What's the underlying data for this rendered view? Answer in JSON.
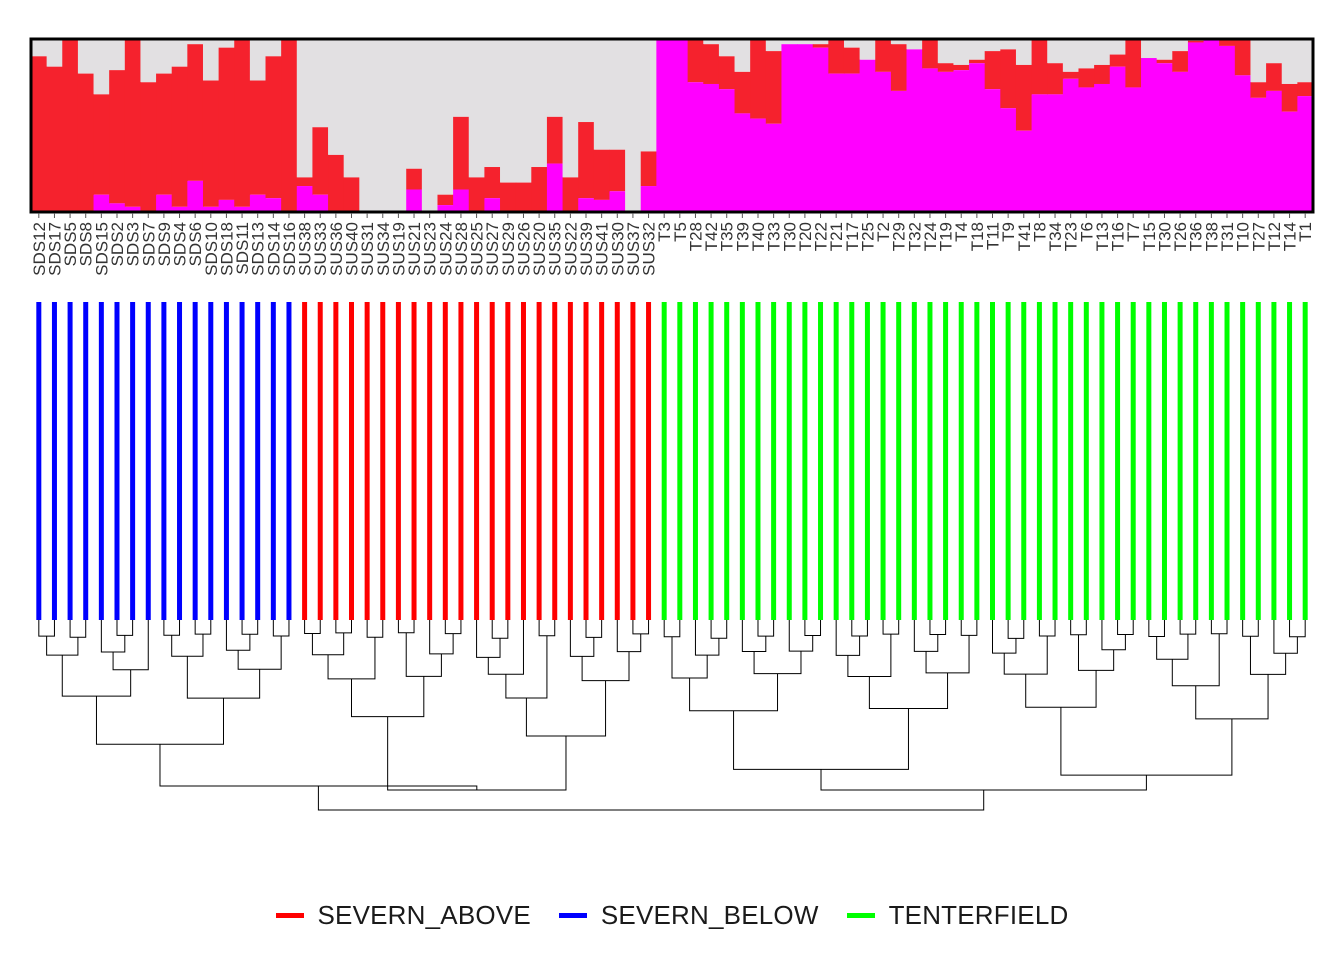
{
  "chart_data": {
    "type": "bar",
    "subtype": "stacked admixture barplot with sample grouping strips and dendrogram",
    "ylim": [
      0,
      1
    ],
    "components": [
      {
        "name": "cluster_grey",
        "color": "#e2e0e2"
      },
      {
        "name": "cluster_red",
        "color": "#f5222d"
      },
      {
        "name": "cluster_magenta",
        "color": "#ff00ff"
      }
    ],
    "samples": [
      "SDS12",
      "SDS17",
      "SDS5",
      "SDS8",
      "SDS15",
      "SDS2",
      "SDS3",
      "SDS7",
      "SDS9",
      "SDS4",
      "SDS6",
      "SDS10",
      "SDS18",
      "SDS11",
      "SDS13",
      "SDS14",
      "SDS16",
      "SUS38",
      "SUS33",
      "SUS36",
      "SUS40",
      "SUS31",
      "SUS34",
      "SUS19",
      "SUS21",
      "SUS23",
      "SUS24",
      "SUS28",
      "SUS25",
      "SUS27",
      "SUS29",
      "SUS26",
      "SUS20",
      "SUS35",
      "SUS22",
      "SUS39",
      "SUS41",
      "SUS30",
      "SUS37",
      "SUS32",
      "T3",
      "T5",
      "T28",
      "T42",
      "T35",
      "T39",
      "T40",
      "T33",
      "T30",
      "T20",
      "T22",
      "T21",
      "T17",
      "T25",
      "T2",
      "T29",
      "T32",
      "T24",
      "T19",
      "T4",
      "T18",
      "T11",
      "T9",
      "T41",
      "T8",
      "T34",
      "T23",
      "T6",
      "T13",
      "T16",
      "T7",
      "T15",
      "T30",
      "T26",
      "T36",
      "T38",
      "T31",
      "T10",
      "T27",
      "T12",
      "T14",
      "T1"
    ],
    "red_fraction": [
      0.9,
      0.84,
      1.0,
      0.8,
      0.68,
      0.82,
      1.0,
      0.75,
      0.8,
      0.84,
      0.97,
      0.76,
      0.95,
      1.0,
      0.76,
      0.9,
      1.0,
      0.2,
      0.49,
      0.33,
      0.2,
      0.0,
      0.0,
      0.0,
      0.25,
      0.0,
      0.1,
      0.55,
      0.2,
      0.26,
      0.17,
      0.17,
      0.26,
      0.55,
      0.2,
      0.52,
      0.36,
      0.36,
      0.0,
      0.35,
      1.0,
      1.0,
      1.0,
      0.97,
      0.9,
      0.81,
      1.0,
      0.93,
      0.97,
      0.97,
      0.97,
      1.0,
      0.95,
      0.88,
      1.0,
      0.97,
      0.94,
      1.0,
      0.86,
      0.85,
      0.88,
      0.93,
      0.94,
      0.85,
      1.0,
      0.86,
      0.81,
      0.83,
      0.85,
      0.91,
      1.0,
      0.89,
      0.88,
      0.93,
      0.99,
      1.0,
      1.0,
      1.0,
      0.75,
      0.86,
      0.74,
      0.75
    ],
    "magenta_fraction": [
      0,
      0,
      0,
      0,
      0.1,
      0.05,
      0.03,
      0,
      0.1,
      0.03,
      0.18,
      0.03,
      0.07,
      0.03,
      0.1,
      0.08,
      0,
      0.15,
      0.1,
      0,
      0,
      0,
      0,
      0,
      0.13,
      0,
      0.04,
      0.13,
      0,
      0.08,
      0,
      0,
      0,
      0.28,
      0,
      0.08,
      0.07,
      0.12,
      0.22,
      0.15,
      1.0,
      1.0,
      0.75,
      0.74,
      0.71,
      0.57,
      0.54,
      0.51,
      0.97,
      0.97,
      0.95,
      0.8,
      0.8,
      0.93,
      0.81,
      0.7,
      0.96,
      0.83,
      0.81,
      0.82,
      0.86,
      0.71,
      0.6,
      0.47,
      0.68,
      0.68,
      0.77,
      0.72,
      0.74,
      0.84,
      0.72,
      0.89,
      0.86,
      0.81,
      0.98,
      1.0,
      0.96,
      0.79,
      0.66,
      0.7,
      0.58,
      0.67
    ],
    "groups": [
      {
        "name": "SEVERN_BELOW",
        "color": "#0000ff",
        "start": 0,
        "count": 17
      },
      {
        "name": "SEVERN_ABOVE",
        "color": "#ff0000",
        "start": 17,
        "count": 23
      },
      {
        "name": "TENTERFIELD",
        "color": "#00ff00",
        "start": 40,
        "count": 42
      }
    ],
    "legend": {
      "position": "bottom",
      "entries": [
        {
          "label": "SEVERN_ABOVE",
          "color": "#ff0000"
        },
        {
          "label": "SEVERN_BELOW",
          "color": "#0000ff"
        },
        {
          "label": "TENTERFIELD",
          "color": "#00ff00"
        }
      ]
    },
    "dendrogram": {
      "type": "hierarchical clustering",
      "leaf_order": "same as samples",
      "major_split": [
        "SEVERN (SDS + SUS)",
        "TENTERFIELD (T)"
      ]
    }
  }
}
